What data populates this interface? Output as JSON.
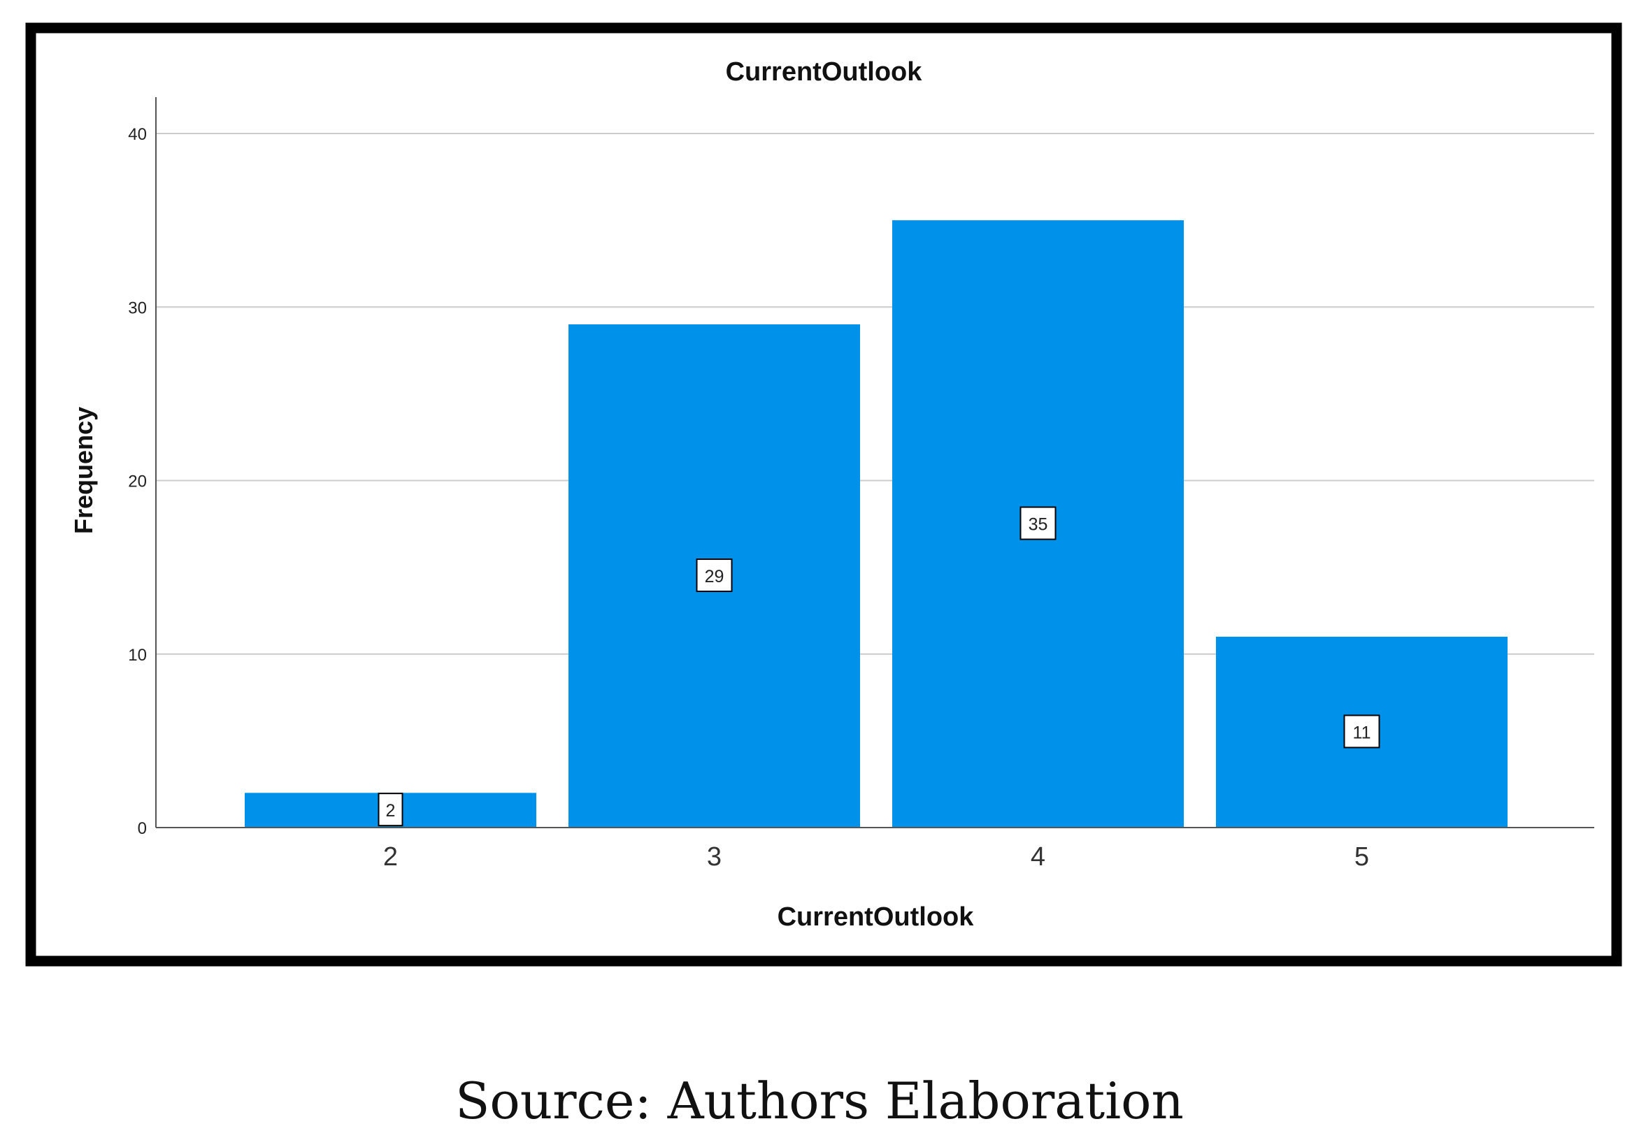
{
  "caption": "Source: Authors Elaboration",
  "chart_data": {
    "type": "bar",
    "title": "CurrentOutlook",
    "xlabel": "CurrentOutlook",
    "ylabel": "Frequency",
    "categories": [
      "2",
      "3",
      "4",
      "5"
    ],
    "values": [
      2,
      29,
      35,
      11
    ],
    "data_labels": [
      "2",
      "29",
      "35",
      "11"
    ],
    "ylim": [
      0,
      42
    ],
    "yticks": [
      0,
      10,
      20,
      30,
      40
    ],
    "grid": true,
    "legend": "none",
    "bar_color": "#0091EA",
    "grid_color": "#CCCCCC"
  }
}
